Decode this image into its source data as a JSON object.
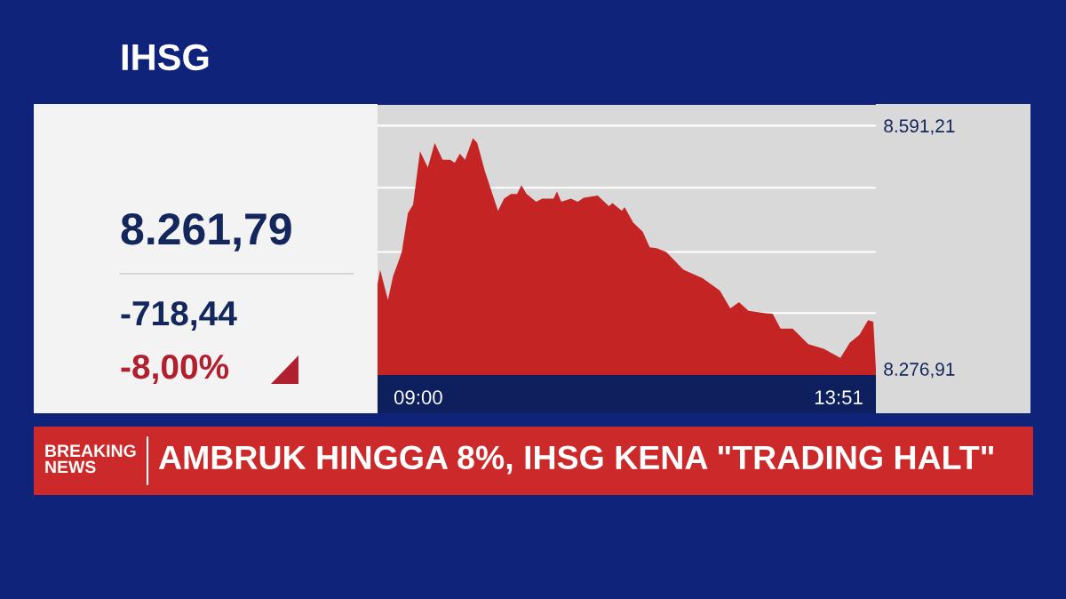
{
  "chart_data": {
    "type": "area",
    "title": "IHSG",
    "annotations": [
      "8.261,79",
      "-718,44",
      "-8,00%",
      "BREAKING NEWS",
      "AMBRUK HINGGA 8%, IHSG KENA \"TRADING HALT\""
    ],
    "x": [
      8.53,
      8.56,
      8.65,
      8.71,
      8.75,
      8.81,
      8.88,
      8.94,
      9.02,
      9.11,
      9.19,
      9.28,
      9.37,
      9.42,
      9.48,
      9.54,
      9.63,
      9.68,
      9.77,
      9.92,
      9.99,
      10.07,
      10.14,
      10.19,
      10.25,
      10.36,
      10.43,
      10.56,
      10.6,
      10.65,
      10.76,
      10.84,
      10.91,
      11.07,
      11.2,
      11.24,
      11.35,
      11.38,
      11.48,
      11.59,
      11.67,
      11.75,
      11.86,
      12.06,
      12.28,
      12.48,
      12.6,
      12.7,
      12.81,
      12.99,
      13.09,
      13.18,
      13.32,
      13.5,
      13.68,
      13.87,
      13.98,
      14.09,
      14.19,
      14.25,
      14.28
    ],
    "series": [
      {
        "color": "#c42424",
        "values": [
          8386,
          8405,
          8366,
          8397,
          8409,
          8428,
          8478,
          8489,
          8558,
          8537,
          8569,
          8547,
          8547,
          8543,
          8555,
          8547,
          8575,
          8569,
          8532,
          8481,
          8497,
          8503,
          8503,
          8514,
          8503,
          8493,
          8497,
          8497,
          8506,
          8493,
          8497,
          8493,
          8498,
          8501,
          8487,
          8491,
          8481,
          8486,
          8466,
          8454,
          8434,
          8433,
          8428,
          8405,
          8394,
          8378,
          8355,
          8363,
          8352,
          8349,
          8348,
          8329,
          8329,
          8309,
          8303,
          8291,
          8311,
          8321,
          8340,
          8338,
          8276.91
        ]
      }
    ],
    "xlim": [
      8.53,
      14.28
    ],
    "xticks": [
      {
        "value": 9.0,
        "label": "09:00"
      },
      {
        "value": 13.85,
        "label": "13:51"
      }
    ],
    "ylim": [
      8269,
      8618
    ],
    "yticks": [
      {
        "value": 8276.91,
        "label": "8.276,91"
      },
      {
        "value": 8349,
        "label": null
      },
      {
        "value": 8428,
        "label": null
      },
      {
        "value": 8511,
        "label": null
      },
      {
        "value": 8591.21,
        "label": "8.591,21"
      }
    ],
    "grid": "y"
  }
}
